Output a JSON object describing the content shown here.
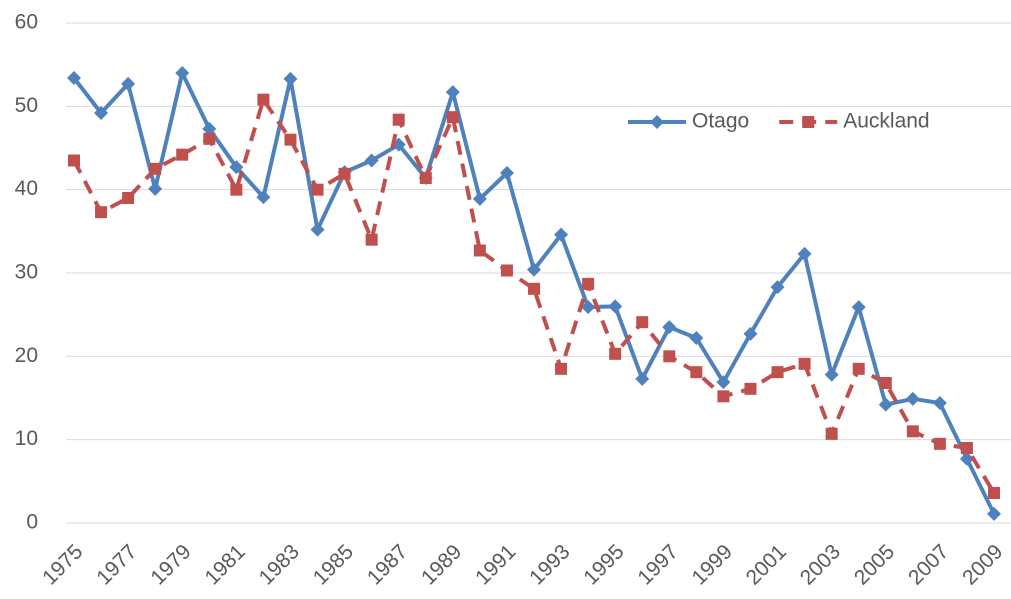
{
  "chart_data": {
    "type": "line",
    "x": [
      1975,
      1976,
      1977,
      1978,
      1979,
      1980,
      1981,
      1982,
      1983,
      1984,
      1985,
      1986,
      1987,
      1988,
      1989,
      1990,
      1991,
      1992,
      1993,
      1994,
      1995,
      1996,
      1997,
      1998,
      1999,
      2000,
      2001,
      2002,
      2003,
      2004,
      2005,
      2006,
      2007,
      2008,
      2009
    ],
    "series": [
      {
        "name": "Otago",
        "color": "#4f81bd",
        "style": "solid",
        "marker": "diamond",
        "values": [
          53.4,
          49.2,
          52.7,
          40.1,
          54.0,
          47.3,
          42.7,
          39.1,
          53.3,
          35.2,
          42.1,
          43.5,
          45.4,
          41.4,
          51.7,
          38.9,
          42.0,
          30.4,
          34.6,
          25.9,
          26.0,
          17.3,
          23.5,
          22.2,
          16.9,
          22.7,
          28.3,
          32.3,
          17.8,
          25.9,
          14.2,
          14.9,
          14.4,
          7.7,
          1.1
        ]
      },
      {
        "name": "Auckland",
        "color": "#c0504d",
        "style": "dashed",
        "marker": "square",
        "values": [
          43.5,
          37.3,
          39.0,
          42.5,
          44.2,
          46.1,
          40.0,
          50.8,
          46.0,
          40.0,
          41.9,
          34.0,
          48.4,
          41.4,
          48.7,
          32.7,
          30.3,
          28.1,
          18.5,
          28.7,
          20.3,
          24.1,
          20.0,
          18.1,
          15.2,
          16.1,
          18.1,
          19.1,
          10.7,
          18.5,
          16.8,
          11.0,
          9.5,
          9.0,
          3.6
        ]
      }
    ],
    "xlim": [
      1975,
      2009
    ],
    "xticks": [
      1975,
      1977,
      1979,
      1981,
      1983,
      1985,
      1987,
      1989,
      1991,
      1993,
      1995,
      1997,
      1999,
      2001,
      2003,
      2005,
      2007,
      2009
    ],
    "ylim": [
      0,
      60
    ],
    "yticks": [
      0,
      10,
      20,
      30,
      40,
      50,
      60
    ],
    "grid": true,
    "legend": "upper right"
  }
}
